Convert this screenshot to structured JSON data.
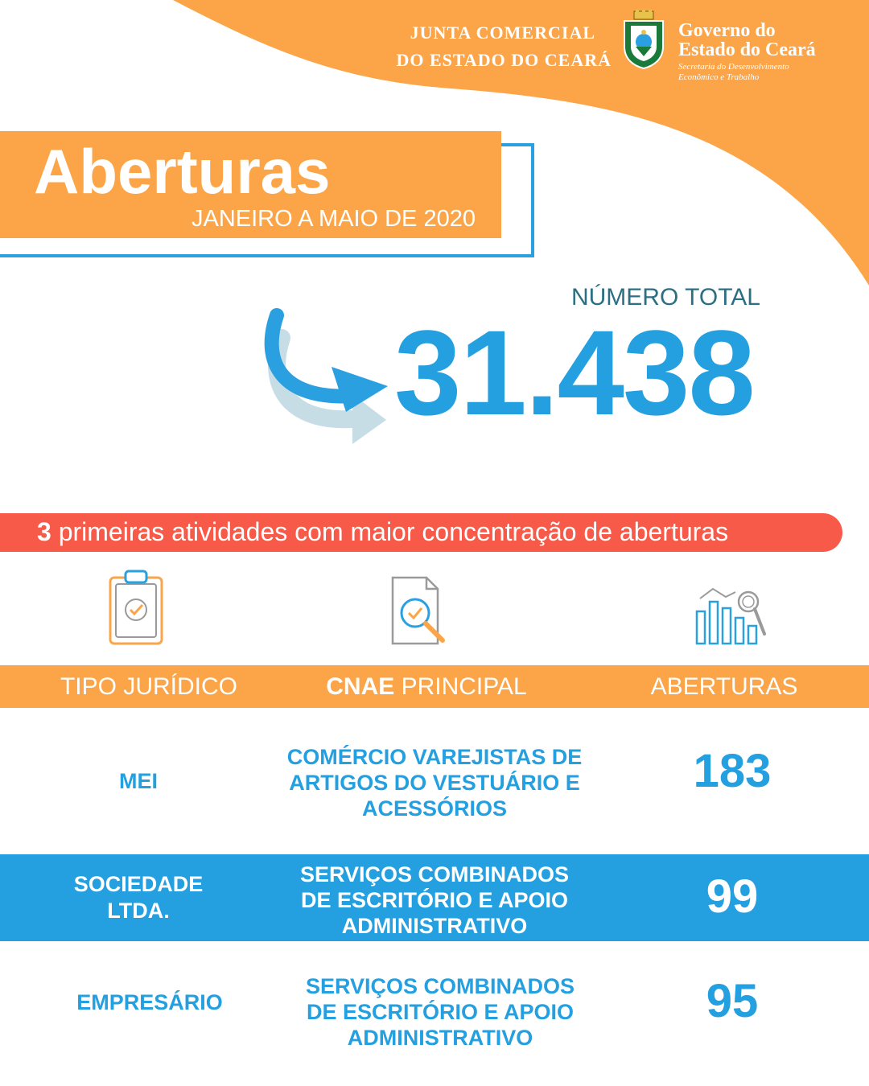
{
  "header": {
    "junta_line1": "JUNTA COMERCIAL",
    "junta_line2": "DO ESTADO DO CEARÁ",
    "gov_line1": "Governo do",
    "gov_line2": "Estado do Ceará",
    "gov_sub1": "Secretaria do Desenvolvimento",
    "gov_sub2": "Econômico e Trabalho"
  },
  "title": {
    "main": "Aberturas",
    "period": "JANEIRO A MAIO DE 2020"
  },
  "total": {
    "label": "NÚMERO TOTAL",
    "value": "31.438"
  },
  "banner": {
    "count": "3",
    "text": " primeiras atividades com maior concentração de aberturas"
  },
  "icons": [
    "clipboard-check-icon",
    "document-search-icon",
    "bar-chart-search-icon"
  ],
  "table": {
    "headers": {
      "tipo": "TIPO JURÍDICO",
      "cnae_bold": "CNAE",
      "cnae_rest": " PRINCIPAL",
      "aberturas": "ABERTURAS"
    },
    "rows": [
      {
        "tipo": "MEI",
        "cnae": [
          "COMÉRCIO VAREJISTAS DE",
          "ARTIGOS DO VESTUÁRIO E",
          "ACESSÓRIOS"
        ],
        "aberturas": "183"
      },
      {
        "tipo": [
          "SOCIEDADE",
          "LTDA."
        ],
        "cnae": [
          "SERVIÇOS COMBINADOS",
          "DE ESCRITÓRIO E APOIO",
          "ADMINISTRATIVO"
        ],
        "aberturas": "99"
      },
      {
        "tipo": "EMPRESÁRIO",
        "cnae": [
          "SERVIÇOS COMBINADOS",
          "DE ESCRITÓRIO E APOIO",
          "ADMINISTRATIVO"
        ],
        "aberturas": "95"
      }
    ]
  },
  "colors": {
    "orange": "#fba548",
    "blue": "#24a0e0",
    "red": "#f85a49",
    "teal": "#2c6f83"
  }
}
